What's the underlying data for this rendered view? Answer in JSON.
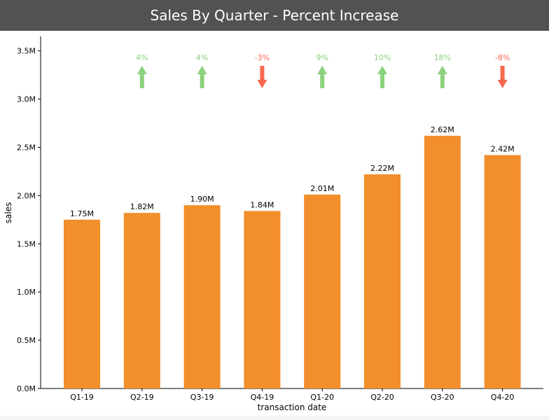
{
  "header": {
    "title": "Sales By Quarter - Percent Increase"
  },
  "colors": {
    "bar": "#f28e2b",
    "increase": "#8cd17d",
    "decrease": "#f8684f",
    "header_bg": "#525252"
  },
  "chart_data": {
    "type": "bar",
    "title": "Sales By Quarter - Percent Increase",
    "xlabel": "transaction date",
    "ylabel": "sales",
    "ylim": [
      0,
      3.65
    ],
    "y_unit": "millions",
    "yticks": [
      0.0,
      0.5,
      1.0,
      1.5,
      2.0,
      2.5,
      3.0,
      3.5
    ],
    "ytick_labels": [
      "0.0M",
      "0.5M",
      "1.0M",
      "1.5M",
      "2.0M",
      "2.5M",
      "3.0M",
      "3.5M"
    ],
    "categories": [
      "Q1-19",
      "Q2-19",
      "Q3-19",
      "Q4-19",
      "Q1-20",
      "Q2-20",
      "Q3-20",
      "Q4-20"
    ],
    "values": [
      1.75,
      1.82,
      1.9,
      1.84,
      2.01,
      2.22,
      2.62,
      2.42
    ],
    "value_labels": [
      "1.75M",
      "1.82M",
      "1.90M",
      "1.84M",
      "2.01M",
      "2.22M",
      "2.62M",
      "2.42M"
    ],
    "changes": [
      null,
      {
        "label": "4%",
        "direction": "up"
      },
      {
        "label": "4%",
        "direction": "up"
      },
      {
        "label": "-3%",
        "direction": "down"
      },
      {
        "label": "9%",
        "direction": "up"
      },
      {
        "label": "10%",
        "direction": "up"
      },
      {
        "label": "18%",
        "direction": "up"
      },
      {
        "label": "-8%",
        "direction": "down"
      }
    ],
    "grid": false,
    "legend": "none"
  }
}
